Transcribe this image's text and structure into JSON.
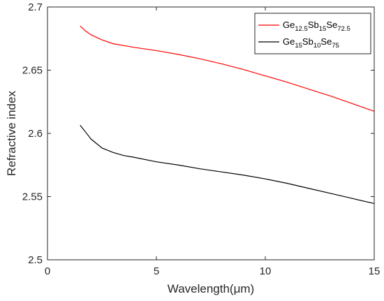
{
  "chart_data": {
    "type": "line",
    "xlabel": "Wavelength(μm)",
    "ylabel": "Refractive index",
    "xlim": [
      0,
      15
    ],
    "ylim": [
      2.5,
      2.7
    ],
    "xticks": [
      "0",
      "5",
      "10",
      "15"
    ],
    "yticks": [
      "2.5",
      "2.55",
      "2.6",
      "2.65",
      "2.7"
    ],
    "grid": false,
    "legend_position": "top-right",
    "series": [
      {
        "name": "Ge12.5Sb15Se72.5",
        "legend": {
          "parts": [
            {
              "t": "Ge",
              "sub": false
            },
            {
              "t": "12.5",
              "sub": true
            },
            {
              "t": "Sb",
              "sub": false
            },
            {
              "t": "15",
              "sub": true
            },
            {
              "t": "Se",
              "sub": false
            },
            {
              "t": "72.5",
              "sub": true
            }
          ]
        },
        "color": "#ff0000",
        "x": [
          1.5,
          1.75,
          2,
          2.5,
          3,
          4,
          5,
          6,
          7,
          8,
          9,
          10,
          11,
          12,
          13,
          14,
          15
        ],
        "y": [
          2.685,
          2.681,
          2.678,
          2.674,
          2.671,
          2.668,
          2.6655,
          2.6625,
          2.659,
          2.655,
          2.6505,
          2.6455,
          2.6405,
          2.635,
          2.6295,
          2.6235,
          2.6175
        ]
      },
      {
        "name": "Ge15Sb10Se75",
        "legend": {
          "parts": [
            {
              "t": "Ge",
              "sub": false
            },
            {
              "t": "15",
              "sub": true
            },
            {
              "t": "Sb",
              "sub": false
            },
            {
              "t": "10",
              "sub": true
            },
            {
              "t": "Se",
              "sub": false
            },
            {
              "t": "75",
              "sub": true
            }
          ]
        },
        "color": "#000000",
        "x": [
          1.5,
          1.75,
          2,
          2.25,
          2.5,
          3,
          3.5,
          4,
          5,
          6,
          7,
          8,
          9,
          10,
          11,
          12,
          13,
          14,
          15
        ],
        "y": [
          2.6065,
          2.601,
          2.5955,
          2.592,
          2.5885,
          2.585,
          2.5825,
          2.581,
          2.5775,
          2.575,
          2.572,
          2.5695,
          2.567,
          2.564,
          2.5605,
          2.5565,
          2.5525,
          2.5485,
          2.5445
        ]
      }
    ]
  }
}
